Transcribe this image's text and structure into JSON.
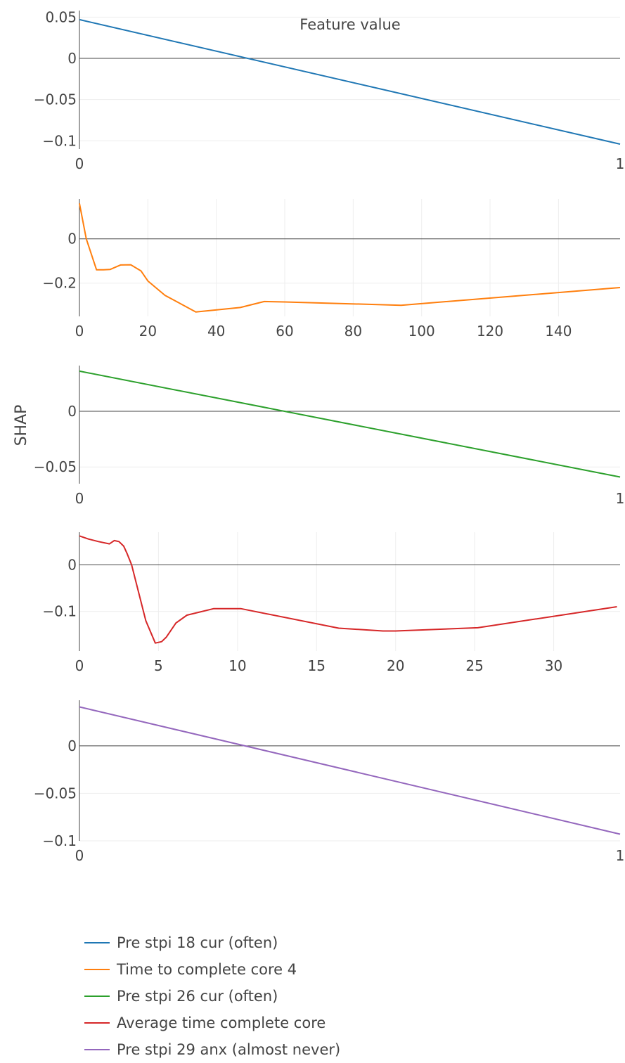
{
  "chart_data": {
    "type": "line",
    "ylabel": "SHAP",
    "annotation": "Feature value",
    "legend_position": "bottom-left",
    "grid": true,
    "series": [
      {
        "name": "Pre stpi 18 cur (often)",
        "color": "#1f77b4",
        "x": [
          0,
          1
        ],
        "y": [
          0.047,
          -0.104
        ],
        "xlim": [
          0,
          1
        ],
        "ylim": [
          -0.11,
          0.058
        ],
        "xticks": [
          0,
          1
        ],
        "yticks": [
          0.05,
          0,
          -0.05,
          -0.1
        ],
        "ytick_labels": [
          "0.05",
          "0",
          "−0.05",
          "−0.1"
        ]
      },
      {
        "name": "Time to complete core 4",
        "color": "#ff7f0e",
        "x": [
          0,
          2,
          5,
          7,
          9,
          12,
          15,
          18,
          20,
          25,
          34,
          47,
          54,
          60,
          94,
          158
        ],
        "y": [
          0.16,
          0,
          -0.14,
          -0.14,
          -0.138,
          -0.118,
          -0.117,
          -0.145,
          -0.19,
          -0.255,
          -0.33,
          -0.31,
          -0.283,
          -0.285,
          -0.3,
          -0.22
        ],
        "xlim": [
          0,
          158
        ],
        "ylim": [
          -0.35,
          0.18
        ],
        "xticks": [
          0,
          20,
          40,
          60,
          80,
          100,
          120,
          140
        ],
        "yticks": [
          0,
          -0.2
        ],
        "ytick_labels": [
          "0",
          "−0.2"
        ]
      },
      {
        "name": "Pre stpi 26 cur (often)",
        "color": "#2ca02c",
        "x": [
          0,
          1
        ],
        "y": [
          0.036,
          -0.059
        ],
        "xlim": [
          0,
          1
        ],
        "ylim": [
          -0.065,
          0.041
        ],
        "xticks": [
          0,
          1
        ],
        "yticks": [
          0,
          -0.05
        ],
        "ytick_labels": [
          "0",
          "−0.05"
        ]
      },
      {
        "name": "Average time complete core",
        "color": "#d62728",
        "x": [
          0,
          0.6,
          1.2,
          1.9,
          2.2,
          2.5,
          2.8,
          3.0,
          3.3,
          4.2,
          4.8,
          5.2,
          5.5,
          6.1,
          6.8,
          8.5,
          10.2,
          16.4,
          19.2,
          20.0,
          25.2,
          34.0
        ],
        "y": [
          0.062,
          0.055,
          0.05,
          0.045,
          0.052,
          0.05,
          0.04,
          0.025,
          0.0,
          -0.12,
          -0.168,
          -0.165,
          -0.155,
          -0.125,
          -0.108,
          -0.094,
          -0.094,
          -0.136,
          -0.142,
          -0.142,
          -0.135,
          -0.09
        ],
        "xlim": [
          0,
          34.2
        ],
        "ylim": [
          -0.185,
          0.07
        ],
        "xticks": [
          0,
          5,
          10,
          15,
          20,
          25,
          30
        ],
        "yticks": [
          0,
          -0.1
        ],
        "ytick_labels": [
          "0",
          "−0.1"
        ]
      },
      {
        "name": "Pre stpi 29 anx (almost never)",
        "color": "#9467bd",
        "x": [
          0,
          1
        ],
        "y": [
          0.041,
          -0.093
        ],
        "xlim": [
          0,
          1
        ],
        "ylim": [
          -0.1,
          0.048
        ],
        "xticks": [
          0,
          1
        ],
        "yticks": [
          0,
          -0.05,
          -0.1
        ],
        "ytick_labels": [
          "0",
          "−0.05",
          "−0.1"
        ]
      }
    ]
  }
}
